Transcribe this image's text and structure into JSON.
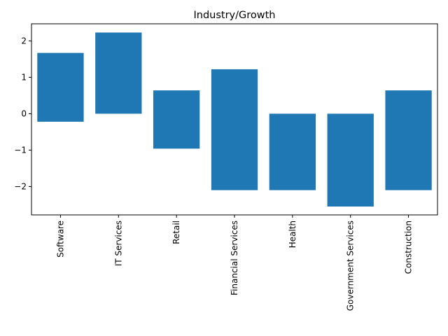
{
  "chart_data": {
    "type": "bar",
    "title": "Industry/Growth",
    "xlabel": "",
    "ylabel": "",
    "categories": [
      "Software",
      "IT Services",
      "Retail",
      "Financial Services",
      "Health",
      "Government Services",
      "Construction"
    ],
    "bars": [
      {
        "bottom": -0.22,
        "top": 1.67
      },
      {
        "bottom": 0.0,
        "top": 2.23
      },
      {
        "bottom": -0.96,
        "top": 0.64
      },
      {
        "bottom": -2.1,
        "top": 1.22
      },
      {
        "bottom": -2.1,
        "top": 0.0
      },
      {
        "bottom": -2.55,
        "top": 0.0
      },
      {
        "bottom": -2.1,
        "top": 0.64
      }
    ],
    "yticks": [
      2,
      1,
      0,
      -1,
      -2
    ],
    "ytick_labels": [
      "2",
      "1",
      "0",
      "−1",
      "−2"
    ],
    "ylim": [
      -2.78,
      2.47
    ],
    "color": "#1f77b4",
    "grid": false,
    "legend": false
  }
}
